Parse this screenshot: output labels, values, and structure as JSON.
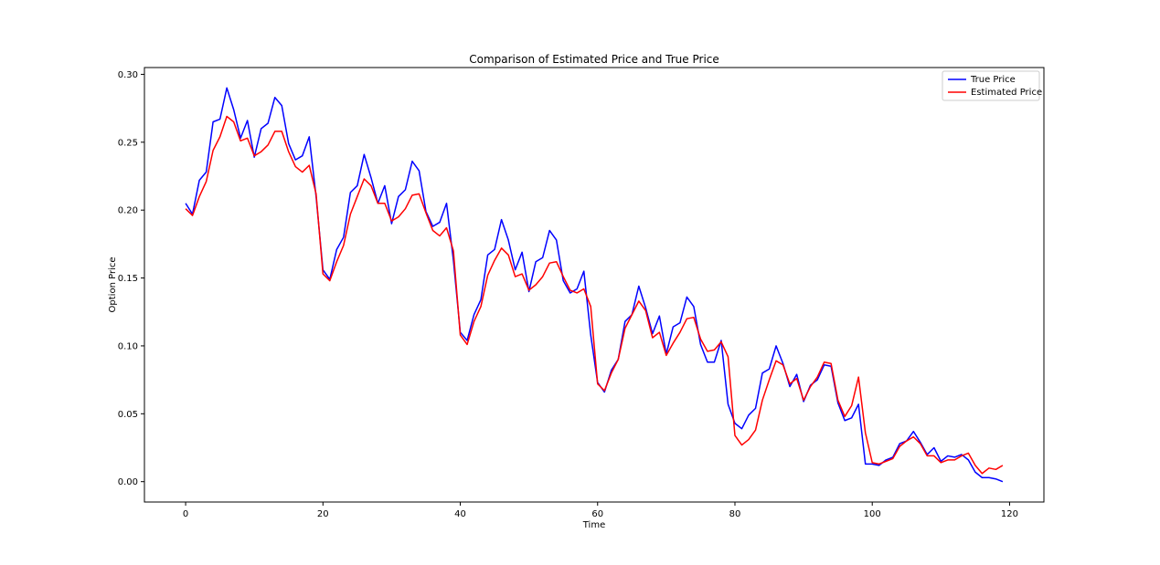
{
  "chart_data": {
    "type": "line",
    "title": "Comparison of Estimated Price and True Price",
    "xlabel": "Time",
    "ylabel": "Option Price",
    "xlim": [
      -6,
      125
    ],
    "ylim": [
      -0.015,
      0.305
    ],
    "xticks": [
      0,
      20,
      40,
      60,
      80,
      100,
      120
    ],
    "xtick_labels": [
      "0",
      "20",
      "40",
      "60",
      "80",
      "100",
      "120"
    ],
    "yticks": [
      0.0,
      0.05,
      0.1,
      0.15,
      0.2,
      0.25,
      0.3
    ],
    "ytick_labels": [
      "0.00",
      "0.05",
      "0.10",
      "0.15",
      "0.20",
      "0.25",
      "0.30"
    ],
    "grid": false,
    "legend": "top-right",
    "x": [
      0,
      1,
      2,
      3,
      4,
      5,
      6,
      7,
      8,
      9,
      10,
      11,
      12,
      13,
      14,
      15,
      16,
      17,
      18,
      19,
      20,
      21,
      22,
      23,
      24,
      25,
      26,
      27,
      28,
      29,
      30,
      31,
      32,
      33,
      34,
      35,
      36,
      37,
      38,
      39,
      40,
      41,
      42,
      43,
      44,
      45,
      46,
      47,
      48,
      49,
      50,
      51,
      52,
      53,
      54,
      55,
      56,
      57,
      58,
      59,
      60,
      61,
      62,
      63,
      64,
      65,
      66,
      67,
      68,
      69,
      70,
      71,
      72,
      73,
      74,
      75,
      76,
      77,
      78,
      79,
      80,
      81,
      82,
      83,
      84,
      85,
      86,
      87,
      88,
      89,
      90,
      91,
      92,
      93,
      94,
      95,
      96,
      97,
      98,
      99,
      100,
      101,
      102,
      103,
      104,
      105,
      106,
      107,
      108,
      109,
      110,
      111,
      112,
      113,
      114,
      115,
      116,
      117,
      118,
      119
    ],
    "series": [
      {
        "name": "True Price",
        "color": "#0000ff",
        "values": [
          0.205,
          0.197,
          0.222,
          0.228,
          0.265,
          0.267,
          0.29,
          0.274,
          0.253,
          0.266,
          0.239,
          0.26,
          0.264,
          0.283,
          0.277,
          0.249,
          0.237,
          0.24,
          0.254,
          0.21,
          0.156,
          0.149,
          0.171,
          0.18,
          0.213,
          0.218,
          0.241,
          0.224,
          0.205,
          0.218,
          0.19,
          0.21,
          0.215,
          0.236,
          0.229,
          0.199,
          0.188,
          0.191,
          0.205,
          0.163,
          0.11,
          0.104,
          0.123,
          0.134,
          0.167,
          0.171,
          0.193,
          0.178,
          0.156,
          0.169,
          0.14,
          0.162,
          0.165,
          0.185,
          0.178,
          0.148,
          0.139,
          0.142,
          0.155,
          0.108,
          0.073,
          0.066,
          0.082,
          0.09,
          0.118,
          0.123,
          0.144,
          0.128,
          0.109,
          0.122,
          0.094,
          0.114,
          0.117,
          0.136,
          0.129,
          0.101,
          0.088,
          0.088,
          0.104,
          0.057,
          0.043,
          0.039,
          0.049,
          0.054,
          0.08,
          0.083,
          0.1,
          0.087,
          0.07,
          0.079,
          0.059,
          0.071,
          0.075,
          0.086,
          0.085,
          0.058,
          0.045,
          0.047,
          0.057,
          0.013,
          0.013,
          0.012,
          0.016,
          0.018,
          0.028,
          0.03,
          0.037,
          0.029,
          0.02,
          0.025,
          0.015,
          0.019,
          0.018,
          0.02,
          0.016,
          0.007,
          0.003,
          0.003,
          0.002,
          0.0
        ]
      },
      {
        "name": "Estimated Price",
        "color": "#ff0000",
        "values": [
          0.201,
          0.196,
          0.21,
          0.221,
          0.244,
          0.254,
          0.269,
          0.265,
          0.251,
          0.253,
          0.24,
          0.243,
          0.248,
          0.258,
          0.258,
          0.243,
          0.232,
          0.228,
          0.233,
          0.212,
          0.153,
          0.148,
          0.162,
          0.174,
          0.197,
          0.21,
          0.223,
          0.218,
          0.205,
          0.205,
          0.192,
          0.195,
          0.201,
          0.211,
          0.212,
          0.198,
          0.185,
          0.181,
          0.187,
          0.17,
          0.108,
          0.101,
          0.118,
          0.129,
          0.152,
          0.163,
          0.172,
          0.167,
          0.151,
          0.153,
          0.141,
          0.145,
          0.151,
          0.161,
          0.162,
          0.151,
          0.141,
          0.139,
          0.142,
          0.129,
          0.072,
          0.067,
          0.08,
          0.09,
          0.113,
          0.123,
          0.133,
          0.126,
          0.106,
          0.11,
          0.093,
          0.102,
          0.11,
          0.12,
          0.121,
          0.105,
          0.096,
          0.097,
          0.103,
          0.092,
          0.034,
          0.027,
          0.031,
          0.038,
          0.06,
          0.075,
          0.089,
          0.086,
          0.072,
          0.076,
          0.06,
          0.07,
          0.077,
          0.088,
          0.087,
          0.06,
          0.048,
          0.056,
          0.077,
          0.036,
          0.014,
          0.013,
          0.015,
          0.017,
          0.026,
          0.03,
          0.033,
          0.028,
          0.019,
          0.019,
          0.014,
          0.016,
          0.016,
          0.019,
          0.021,
          0.012,
          0.006,
          0.01,
          0.009,
          0.012
        ]
      }
    ]
  }
}
